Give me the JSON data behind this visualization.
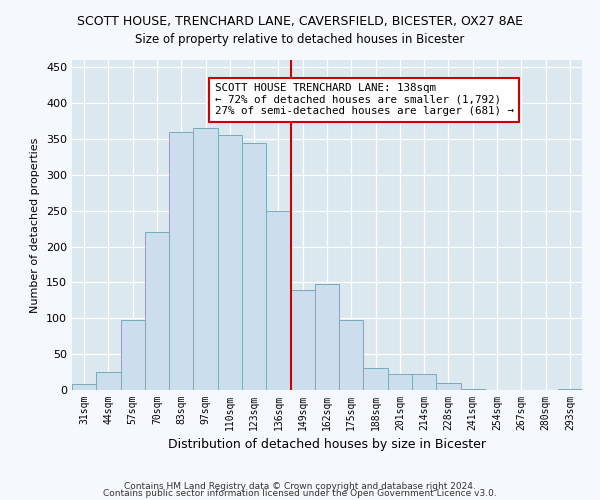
{
  "title": "SCOTT HOUSE, TRENCHARD LANE, CAVERSFIELD, BICESTER, OX27 8AE",
  "subtitle": "Size of property relative to detached houses in Bicester",
  "xlabel": "Distribution of detached houses by size in Bicester",
  "ylabel": "Number of detached properties",
  "bar_labels": [
    "31sqm",
    "44sqm",
    "57sqm",
    "70sqm",
    "83sqm",
    "97sqm",
    "110sqm",
    "123sqm",
    "136sqm",
    "149sqm",
    "162sqm",
    "175sqm",
    "188sqm",
    "201sqm",
    "214sqm",
    "228sqm",
    "241sqm",
    "254sqm",
    "267sqm",
    "280sqm",
    "293sqm"
  ],
  "bar_values": [
    8,
    25,
    98,
    220,
    360,
    365,
    355,
    345,
    250,
    140,
    148,
    97,
    30,
    22,
    22,
    10,
    2,
    0,
    0,
    0,
    2
  ],
  "bar_color": "#ccdded",
  "bar_edge_color": "#7aaabb",
  "vline_index": 8,
  "vline_color": "#cc0000",
  "annotation_title": "SCOTT HOUSE TRENCHARD LANE: 138sqm",
  "annotation_line1": "← 72% of detached houses are smaller (1,792)",
  "annotation_line2": "27% of semi-detached houses are larger (681) →",
  "annotation_box_color": "#ffffff",
  "annotation_box_edge": "#cc0000",
  "ylim": [
    0,
    460
  ],
  "yticks": [
    0,
    50,
    100,
    150,
    200,
    250,
    300,
    350,
    400,
    450
  ],
  "footer1": "Contains HM Land Registry data © Crown copyright and database right 2024.",
  "footer2": "Contains public sector information licensed under the Open Government Licence v3.0.",
  "fig_bg_color": "#f5f8fc",
  "plot_bg_color": "#dce8f0"
}
